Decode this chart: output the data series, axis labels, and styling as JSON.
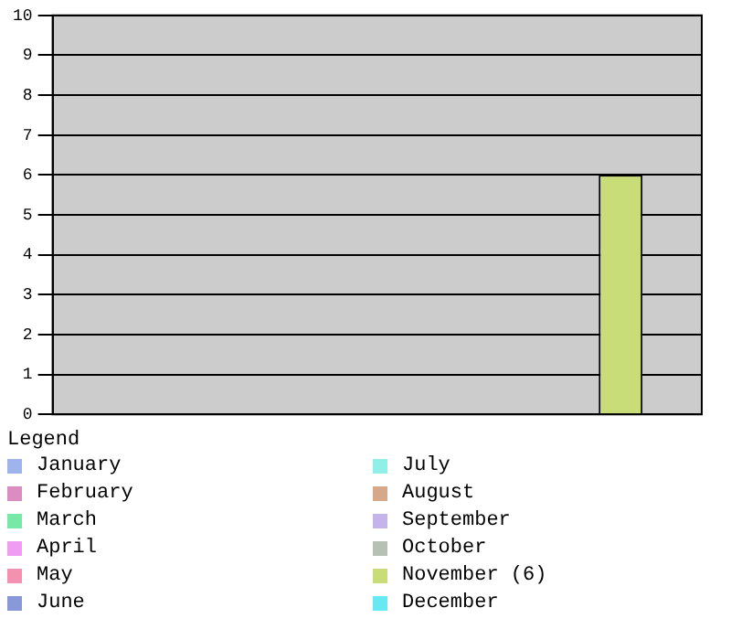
{
  "chart_data": {
    "type": "bar",
    "legend_title": "Legend",
    "categories": [
      null,
      null,
      null,
      null,
      null,
      null,
      null,
      null,
      null,
      null,
      null,
      null
    ],
    "stacked": true,
    "ylim": [
      0,
      10
    ],
    "yticks": [
      0,
      1,
      2,
      3,
      4,
      5,
      6,
      7,
      8,
      9,
      10
    ],
    "grid": "y",
    "legend": "bottom",
    "series": [
      {
        "name": "January",
        "color": "#a0b4ec",
        "values": [
          0,
          null,
          null,
          null,
          null,
          null,
          null,
          null,
          null,
          null,
          null,
          null
        ]
      },
      {
        "name": "February",
        "color": "#dc8cc0",
        "values": [
          null,
          0,
          null,
          null,
          null,
          null,
          null,
          null,
          null,
          null,
          null,
          null
        ]
      },
      {
        "name": "March",
        "color": "#78e8a8",
        "values": [
          null,
          null,
          0,
          null,
          null,
          null,
          null,
          null,
          null,
          null,
          null,
          null
        ]
      },
      {
        "name": "April",
        "color": "#f09cf0",
        "values": [
          null,
          null,
          null,
          0,
          null,
          null,
          null,
          null,
          null,
          null,
          null,
          null
        ]
      },
      {
        "name": "May",
        "color": "#f490b0",
        "values": [
          null,
          null,
          null,
          null,
          0,
          null,
          null,
          null,
          null,
          null,
          null,
          null
        ]
      },
      {
        "name": "June",
        "color": "#8898d8",
        "values": [
          null,
          null,
          null,
          null,
          null,
          0,
          null,
          null,
          null,
          null,
          null,
          null
        ]
      },
      {
        "name": "July",
        "color": "#90f0e8",
        "values": [
          null,
          null,
          null,
          null,
          null,
          null,
          0,
          null,
          null,
          null,
          null,
          null
        ]
      },
      {
        "name": "August",
        "color": "#d4a888",
        "values": [
          null,
          null,
          null,
          null,
          null,
          null,
          null,
          0,
          null,
          null,
          null,
          null
        ]
      },
      {
        "name": "September",
        "color": "#c4b4ec",
        "values": [
          null,
          null,
          null,
          null,
          null,
          null,
          null,
          null,
          0,
          null,
          null,
          null
        ]
      },
      {
        "name": "October",
        "color": "#b8c0b4",
        "values": [
          null,
          null,
          null,
          null,
          null,
          null,
          null,
          null,
          null,
          0,
          null,
          null
        ]
      },
      {
        "name": "November (6)",
        "color": "#c8dc78",
        "values": [
          null,
          null,
          null,
          null,
          null,
          null,
          null,
          null,
          null,
          null,
          6,
          null
        ]
      },
      {
        "name": "December",
        "color": "#68e8f0",
        "values": [
          null,
          null,
          null,
          null,
          null,
          null,
          null,
          null,
          null,
          null,
          null,
          0
        ]
      }
    ]
  }
}
